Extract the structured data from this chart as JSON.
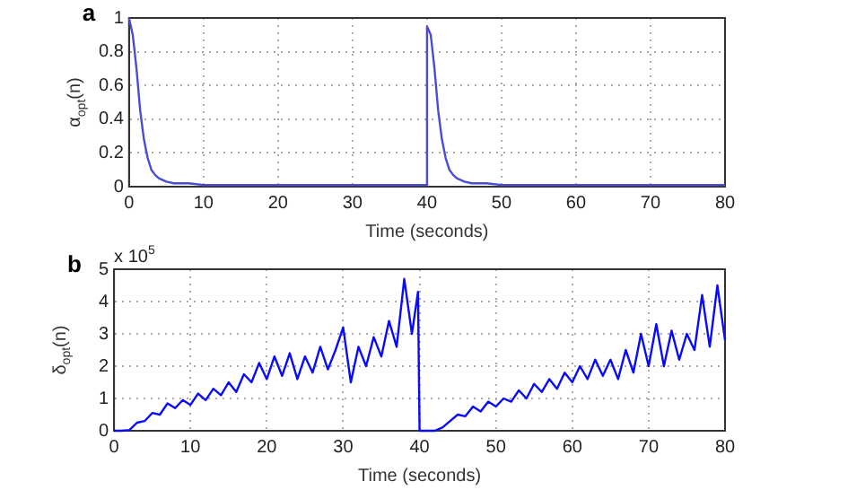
{
  "chart_data": [
    {
      "type": "line",
      "xlabel": "Time (seconds)",
      "ylabel": "α$_{opt}$(n)",
      "annotations": [
        "a"
      ],
      "series": [
        {
          "color": "#4b4bd6",
          "x": [
            0,
            0.5,
            1,
            1.5,
            2,
            2.5,
            3,
            3.5,
            4,
            5,
            6,
            8,
            10,
            15,
            20,
            30,
            39.9,
            40,
            40.5,
            41,
            41.5,
            42,
            42.5,
            43,
            43.5,
            44,
            45,
            46,
            48,
            50,
            55,
            60,
            70,
            80
          ],
          "values": [
            1,
            0.9,
            0.7,
            0.45,
            0.28,
            0.17,
            0.1,
            0.07,
            0.05,
            0.03,
            0.02,
            0.02,
            0.01,
            0.01,
            0.01,
            0.01,
            0.01,
            0.95,
            0.9,
            0.7,
            0.45,
            0.28,
            0.17,
            0.1,
            0.07,
            0.05,
            0.03,
            0.02,
            0.02,
            0.01,
            0.01,
            0.01,
            0.01,
            0.01
          ]
        }
      ],
      "xlim": [
        0,
        80
      ],
      "xticks": [
        0,
        10,
        20,
        30,
        40,
        50,
        60,
        70,
        80
      ],
      "ylim": [
        0,
        1
      ],
      "yticks": [
        0,
        0.2,
        0.4,
        0.6,
        0.8,
        1
      ],
      "grid": true,
      "line_style": "solid",
      "marker": "none",
      "legend": false
    },
    {
      "type": "line",
      "xlabel": "Time (seconds)",
      "ylabel": "δ$_{opt}$(n)",
      "annotations": [
        "b",
        "x 10$^{5}$"
      ],
      "series": [
        {
          "color": "#0a0aff",
          "x": [
            0,
            1,
            2,
            3,
            4,
            5,
            6,
            7,
            8,
            9,
            10,
            11,
            12,
            13,
            14,
            15,
            16,
            17,
            18,
            19,
            20,
            21,
            22,
            23,
            24,
            25,
            26,
            27,
            28,
            29,
            30,
            31,
            32,
            33,
            34,
            35,
            36,
            37,
            38,
            39,
            39.8,
            40,
            41,
            42,
            43,
            44,
            45,
            46,
            47,
            48,
            49,
            50,
            51,
            52,
            53,
            54,
            55,
            56,
            57,
            58,
            59,
            60,
            61,
            62,
            63,
            64,
            65,
            66,
            67,
            68,
            69,
            70,
            71,
            72,
            73,
            74,
            75,
            76,
            77,
            78,
            79,
            80
          ],
          "values": [
            0,
            0,
            0.02,
            0.25,
            0.3,
            0.55,
            0.5,
            0.85,
            0.7,
            0.95,
            0.8,
            1.15,
            0.95,
            1.3,
            1.1,
            1.5,
            1.2,
            1.75,
            1.5,
            2.1,
            1.6,
            2.3,
            1.7,
            2.4,
            1.6,
            2.3,
            1.8,
            2.6,
            1.9,
            2.5,
            3.2,
            1.5,
            2.6,
            2,
            2.9,
            2.3,
            3.4,
            2.6,
            4.7,
            3,
            4.3,
            0,
            0,
            0,
            0.1,
            0.3,
            0.5,
            0.45,
            0.75,
            0.6,
            0.9,
            0.75,
            1,
            0.9,
            1.25,
            1,
            1.45,
            1.2,
            1.6,
            1.3,
            1.8,
            1.5,
            2,
            1.6,
            2.2,
            1.7,
            2.2,
            1.6,
            2.5,
            1.8,
            3,
            2,
            3.3,
            2,
            3.1,
            2.2,
            3,
            2.5,
            4.2,
            2.6,
            4.5,
            2.8
          ]
        }
      ],
      "xlim": [
        0,
        80
      ],
      "xticks": [
        0,
        10,
        20,
        30,
        40,
        50,
        60,
        70,
        80
      ],
      "ylim": [
        0,
        5
      ],
      "yticks": [
        0,
        1,
        2,
        3,
        4,
        5
      ],
      "grid": true,
      "line_style": "solid",
      "marker": "none",
      "legend": false
    }
  ]
}
